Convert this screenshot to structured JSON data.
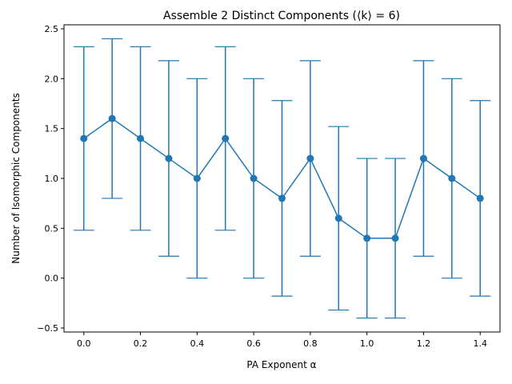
{
  "chart_data": {
    "type": "line",
    "title": "Assemble 2 Distinct Components (⟨k⟩ = 6)",
    "xlabel": "PA Exponent α",
    "ylabel": "Number of Isomorphic Components",
    "xlim": [
      -0.07,
      1.47
    ],
    "ylim": [
      -0.54,
      2.54
    ],
    "xticks": [
      0.0,
      0.2,
      0.4,
      0.6,
      0.8,
      1.0,
      1.2,
      1.4
    ],
    "xtick_labels": [
      "0.0",
      "0.2",
      "0.4",
      "0.6",
      "0.8",
      "1.0",
      "1.2",
      "1.4"
    ],
    "yticks": [
      -0.5,
      0.0,
      0.5,
      1.0,
      1.5,
      2.0,
      2.5
    ],
    "ytick_labels": [
      "−0.5",
      "0.0",
      "0.5",
      "1.0",
      "1.5",
      "2.0",
      "2.5"
    ],
    "grid": false,
    "color": "#1f77b4",
    "series": [
      {
        "x": [
          0.0,
          0.1,
          0.2,
          0.3,
          0.4,
          0.5,
          0.6,
          0.7,
          0.8,
          0.9,
          1.0,
          1.1,
          1.2,
          1.3,
          1.4
        ],
        "y": [
          1.4,
          1.6,
          1.4,
          1.2,
          1.0,
          1.4,
          1.0,
          0.8,
          1.2,
          0.6,
          0.4,
          0.4,
          1.2,
          1.0,
          0.8
        ],
        "err": [
          0.92,
          0.8,
          0.92,
          0.98,
          1.0,
          0.92,
          1.0,
          0.98,
          0.98,
          0.92,
          0.8,
          0.8,
          0.98,
          1.0,
          0.98
        ]
      }
    ]
  }
}
